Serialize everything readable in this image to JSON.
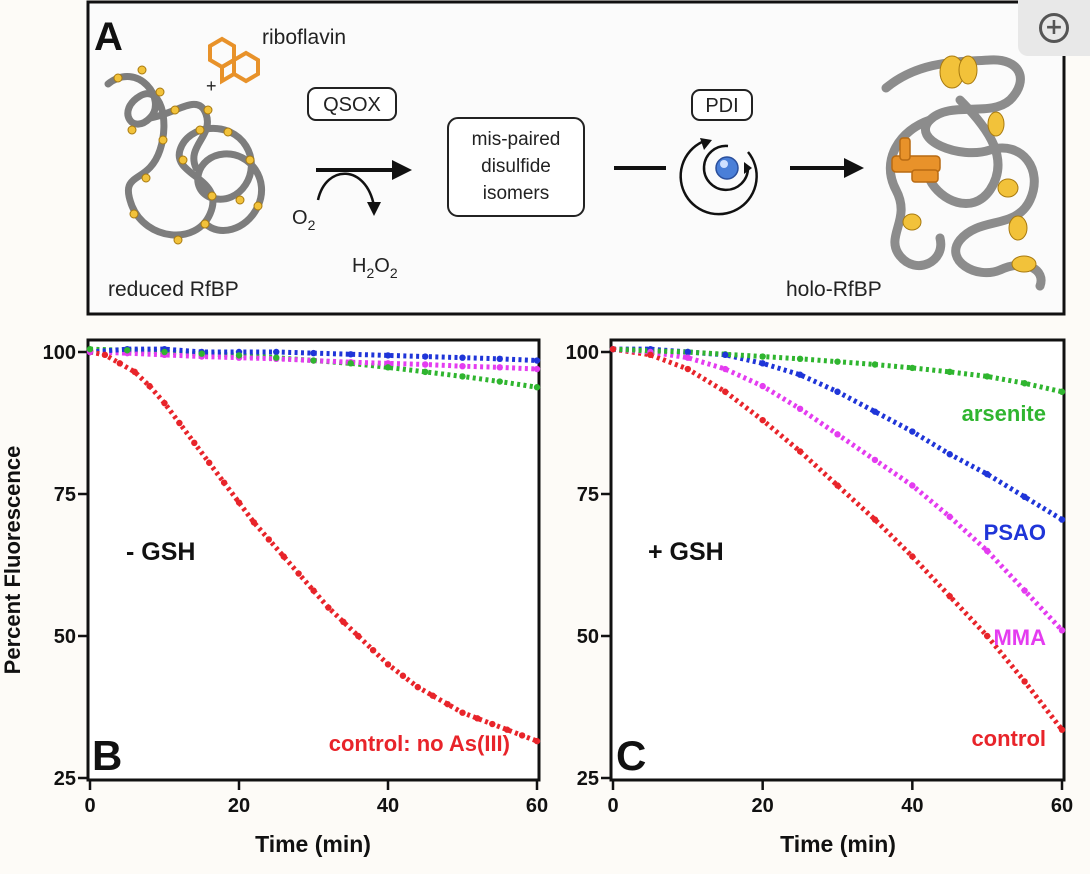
{
  "zoom_icon": "zoom-in-icon",
  "scheme": {
    "panel_letter": "A",
    "riboflavin_label": "riboflavin",
    "plus_sign": "+",
    "reduced_label": "reduced RfBP",
    "qsox_label": "QSOX",
    "o2_label": "O",
    "o2_sub": "2",
    "h2o2_main1": "H",
    "h2o2_sub1": "2",
    "h2o2_main2": "O",
    "h2o2_sub2": "2",
    "isomer_line1": "mis-paired",
    "isomer_line2": "disulfide",
    "isomer_line3": "isomers",
    "pdi_label": "PDI",
    "holo_label": "holo-RfBP",
    "colors": {
      "riboflavin": "#e8922a",
      "protein": "#8a8a8a",
      "disulfide": "#f2c23a"
    }
  },
  "chart_data": [
    {
      "type": "scatter",
      "panel_letter": "B",
      "condition_label": "- GSH",
      "xlabel": "Time (min)",
      "ylabel": "Percent Fluorescence",
      "xlim": [
        0,
        60
      ],
      "ylim": [
        25,
        100
      ],
      "xticks": [
        0,
        20,
        40,
        60
      ],
      "yticks": [
        25,
        50,
        75,
        100
      ],
      "series": [
        {
          "name": "control: no As(III)",
          "color": "#e8242a",
          "x": [
            0,
            2,
            4,
            6,
            8,
            10,
            12,
            14,
            16,
            18,
            20,
            22,
            24,
            26,
            28,
            30,
            32,
            34,
            36,
            38,
            40,
            42,
            44,
            46,
            48,
            50,
            52,
            54,
            56,
            58,
            60
          ],
          "y": [
            100,
            99.5,
            98,
            96.5,
            94,
            91,
            87.5,
            84,
            80.5,
            77,
            73.5,
            70,
            67,
            64,
            61,
            58,
            55,
            52.5,
            50,
            47.5,
            45,
            43,
            41,
            39.5,
            38,
            36.5,
            35.5,
            34.5,
            33.5,
            32.5,
            31.5
          ]
        },
        {
          "name": "blue",
          "color": "#1f35d8",
          "x": [
            0,
            5,
            10,
            15,
            20,
            25,
            30,
            35,
            40,
            45,
            50,
            55,
            60
          ],
          "y": [
            100,
            100.5,
            100.5,
            100,
            100,
            100,
            99.8,
            99.6,
            99.4,
            99.2,
            99,
            98.8,
            98.5
          ]
        },
        {
          "name": "magenta",
          "color": "#e43cf0",
          "x": [
            0,
            5,
            10,
            15,
            20,
            25,
            30,
            35,
            40,
            45,
            50,
            55,
            60
          ],
          "y": [
            100,
            99.8,
            99.5,
            99.2,
            99,
            98.8,
            98.5,
            98.2,
            98,
            97.8,
            97.5,
            97.3,
            97
          ]
        },
        {
          "name": "green",
          "color": "#2fb52f",
          "x": [
            0,
            5,
            10,
            15,
            20,
            25,
            30,
            35,
            40,
            45,
            50,
            55,
            60
          ],
          "y": [
            100.5,
            100.3,
            100,
            99.7,
            99.4,
            99,
            98.5,
            98,
            97.3,
            96.5,
            95.7,
            94.8,
            93.8
          ]
        }
      ],
      "labels": [
        {
          "text": "control: no As(III)",
          "color": "#e8242a"
        }
      ]
    },
    {
      "type": "scatter",
      "panel_letter": "C",
      "condition_label": "+ GSH",
      "xlabel": "Time (min)",
      "ylabel": "",
      "xlim": [
        0,
        60
      ],
      "ylim": [
        25,
        100
      ],
      "xticks": [
        0,
        20,
        40,
        60
      ],
      "yticks": [
        25,
        50,
        75,
        100
      ],
      "series": [
        {
          "name": "arsenite",
          "color": "#2fb52f",
          "x": [
            0,
            5,
            10,
            15,
            20,
            25,
            30,
            35,
            40,
            45,
            50,
            55,
            60
          ],
          "y": [
            100.5,
            100.2,
            100,
            99.6,
            99.2,
            98.8,
            98.3,
            97.8,
            97.2,
            96.5,
            95.7,
            94.5,
            93
          ]
        },
        {
          "name": "PSAO",
          "color": "#1f35d8",
          "x": [
            0,
            5,
            10,
            15,
            20,
            25,
            30,
            35,
            40,
            45,
            50,
            55,
            60
          ],
          "y": [
            100.5,
            100.5,
            100,
            99.5,
            98,
            96,
            93,
            89.5,
            86,
            82,
            78.5,
            74.5,
            70.5
          ]
        },
        {
          "name": "MMA",
          "color": "#e43cf0",
          "x": [
            0,
            5,
            10,
            15,
            20,
            25,
            30,
            35,
            40,
            45,
            50,
            55,
            60
          ],
          "y": [
            100.5,
            100,
            99,
            97,
            94,
            90,
            85.5,
            81,
            76.5,
            71,
            65,
            58,
            51
          ]
        },
        {
          "name": "control",
          "color": "#e8242a",
          "x": [
            0,
            5,
            10,
            15,
            20,
            25,
            30,
            35,
            40,
            45,
            50,
            55,
            60
          ],
          "y": [
            100.5,
            99.5,
            97,
            93,
            88,
            82.5,
            76.5,
            70.5,
            64,
            57,
            50,
            42,
            33.5
          ]
        }
      ],
      "labels": [
        {
          "text": "arsenite",
          "color": "#2fb52f"
        },
        {
          "text": "PSAO",
          "color": "#1f35d8"
        },
        {
          "text": "MMA",
          "color": "#e43cf0"
        },
        {
          "text": "control",
          "color": "#e8242a"
        }
      ]
    }
  ]
}
